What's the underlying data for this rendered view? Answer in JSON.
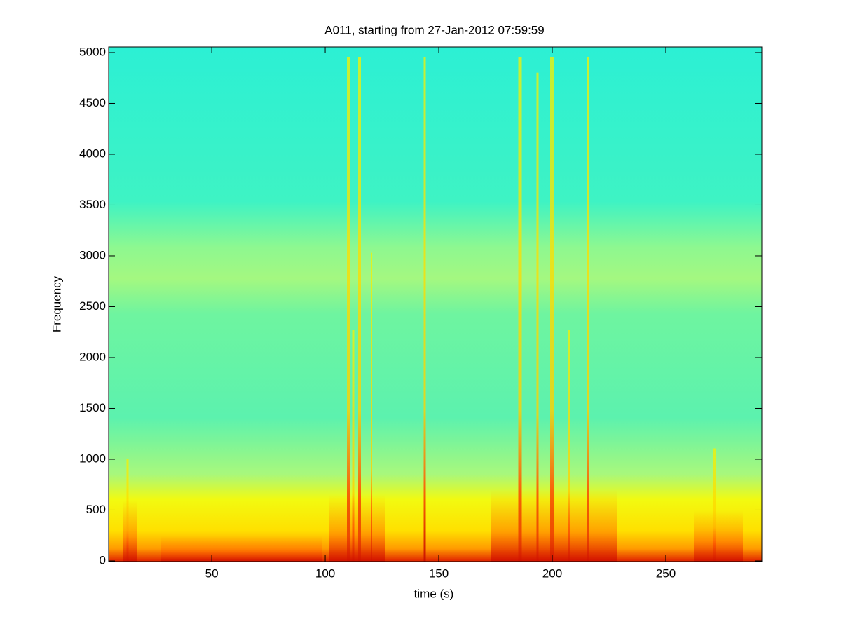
{
  "chart_data": {
    "type": "spectrogram",
    "title": "A011, starting from 27-Jan-2012 07:59:59",
    "xlabel": "time (s)",
    "ylabel": "Frequency",
    "xlim": [
      4.6,
      292.3
    ],
    "xticks": [
      50,
      100,
      150,
      200,
      250
    ],
    "ylim": [
      -7,
      5055
    ],
    "yticks": [
      0,
      500,
      1000,
      1500,
      2000,
      2500,
      3000,
      3500,
      4000,
      4500,
      5000
    ]
  }
}
